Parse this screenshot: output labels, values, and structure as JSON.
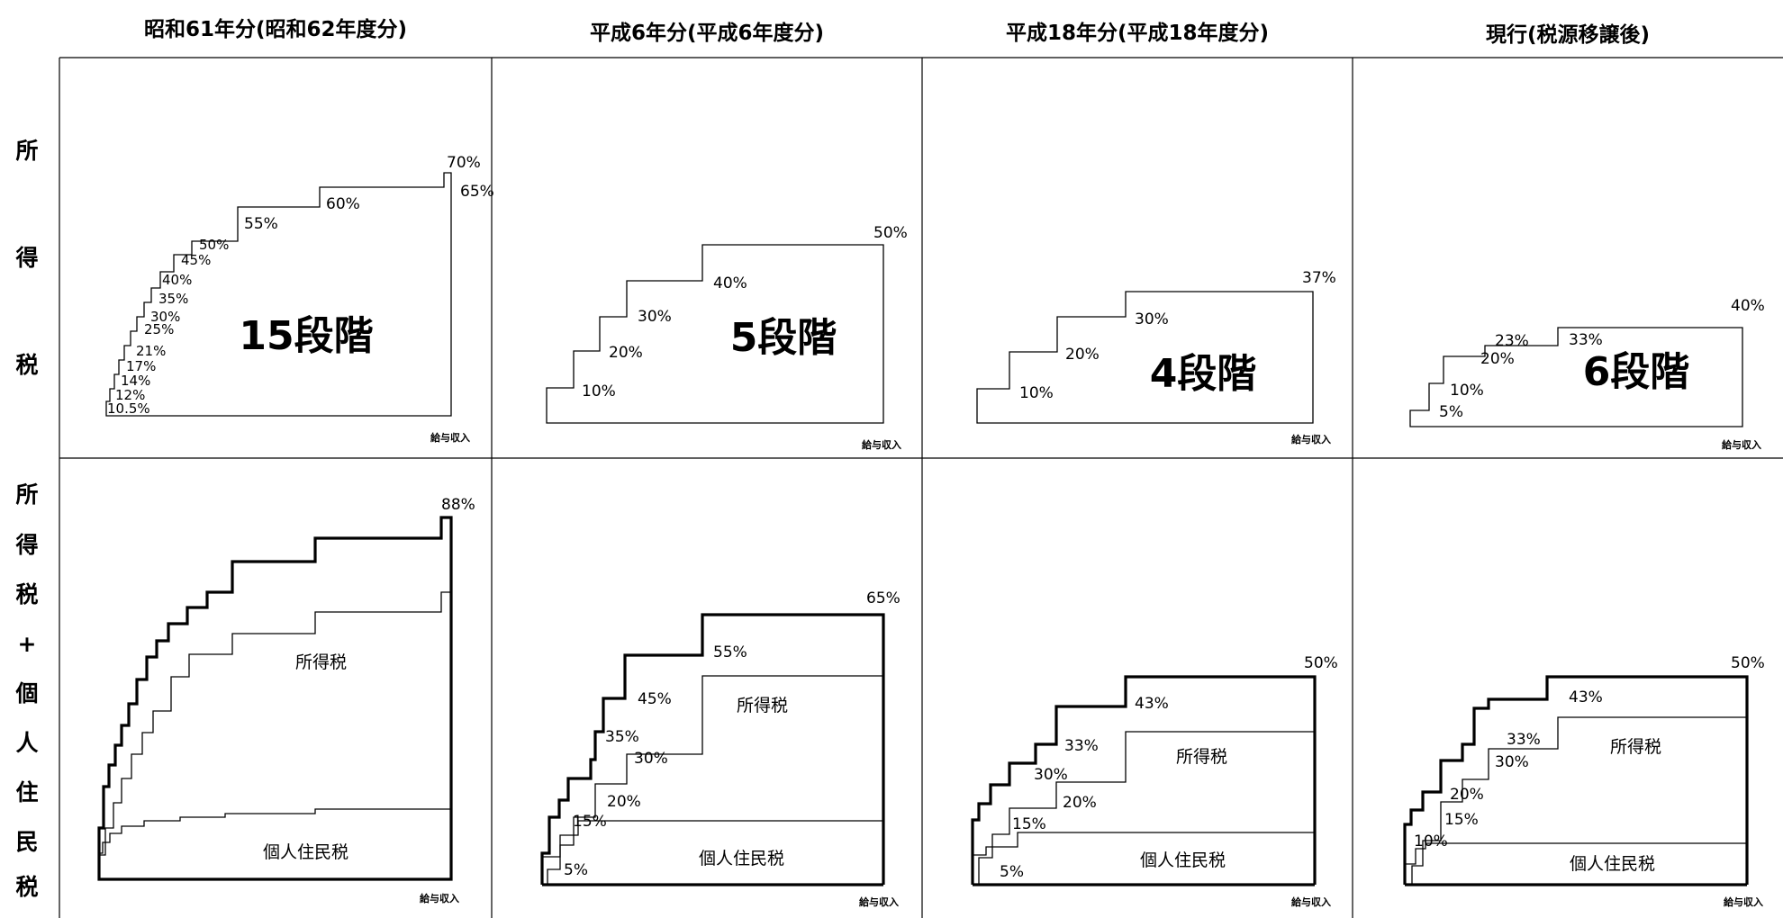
{
  "columns": [
    "昭和61年分(昭和62年度分)",
    "平成6年分(平成6年度分)",
    "平成18年分(平成18年度分)",
    "現行(税源移譲後)"
  ],
  "row_labels": {
    "income_tax": [
      "所",
      "得",
      "税"
    ],
    "combined": [
      "所",
      "得",
      "税",
      "+",
      "個",
      "人",
      "住",
      "民",
      "税"
    ]
  },
  "axis_label": "給与収入",
  "series_labels": {
    "income_tax": "所得税",
    "resident_tax": "個人住民税"
  },
  "income_tax_panels": [
    {
      "stages": "15段階",
      "rates": [
        "10.5%",
        "12%",
        "14%",
        "17%",
        "21%",
        "25%",
        "30%",
        "35%",
        "40%",
        "45%",
        "50%",
        "55%",
        "60%",
        "65%",
        "70%"
      ]
    },
    {
      "stages": "5段階",
      "rates": [
        "10%",
        "20%",
        "30%",
        "40%",
        "50%"
      ]
    },
    {
      "stages": "4段階",
      "rates": [
        "10%",
        "20%",
        "30%",
        "37%"
      ]
    },
    {
      "stages": "6段階",
      "rates": [
        "5%",
        "10%",
        "20%",
        "23%",
        "33%",
        "40%"
      ]
    }
  ],
  "combined_panels": [
    {
      "rates": [
        "88%"
      ]
    },
    {
      "rates": [
        "5%",
        "15%",
        "20%",
        "30%",
        "35%",
        "45%",
        "55%",
        "65%"
      ]
    },
    {
      "rates": [
        "5%",
        "15%",
        "20%",
        "30%",
        "33%",
        "43%",
        "50%"
      ]
    },
    {
      "rates": [
        "10%",
        "15%",
        "20%",
        "30%",
        "33%",
        "43%",
        "50%"
      ]
    }
  ]
}
